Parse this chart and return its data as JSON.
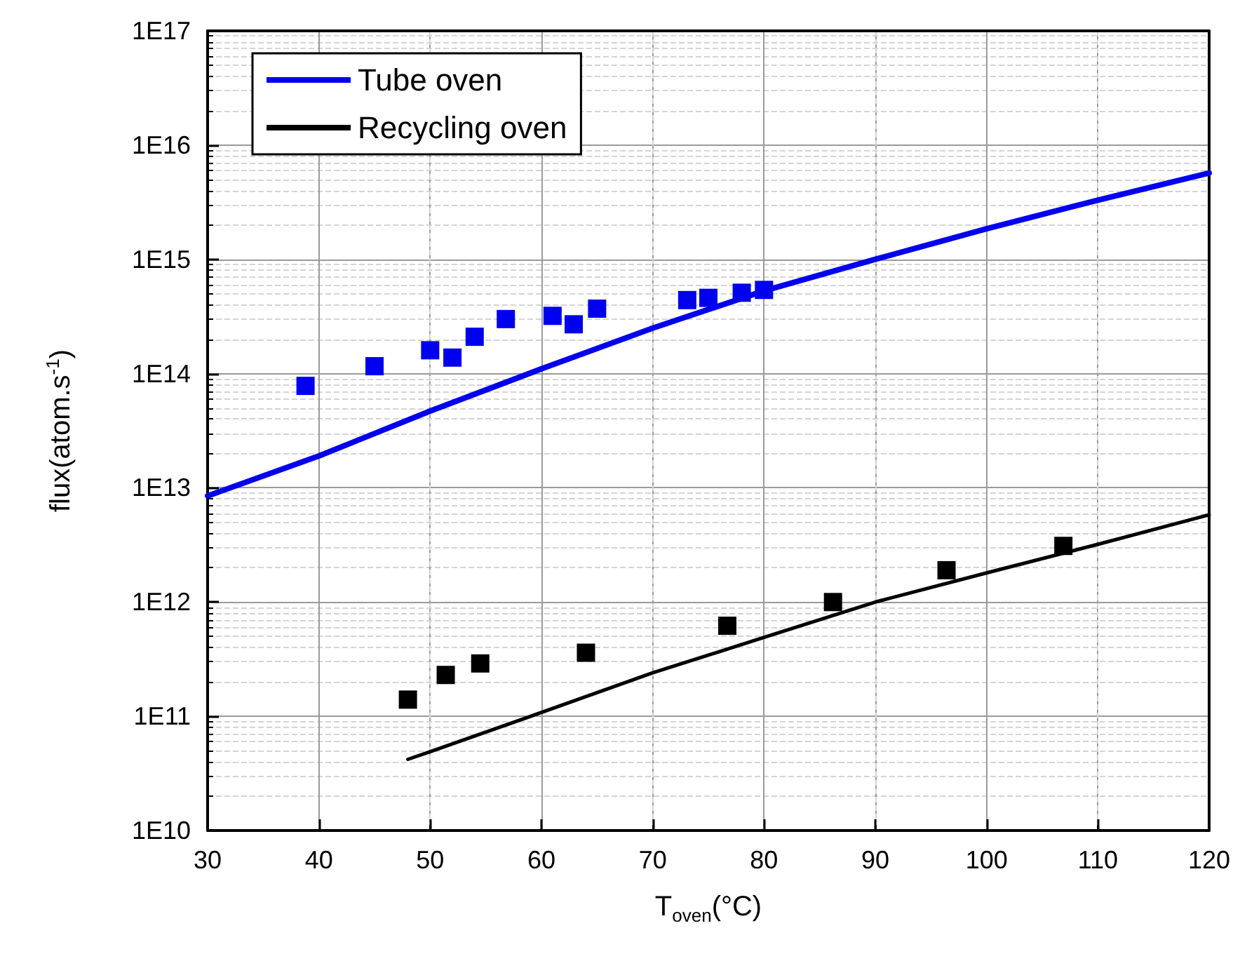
{
  "chart_data": {
    "type": "line",
    "xlabel": "T$_{oven}$(°C)",
    "ylabel": "flux(atom.s$^{-1}$)",
    "log": "y",
    "grid": true,
    "legend": "top left",
    "xlim": [
      30,
      120
    ],
    "xticks": [
      30,
      40,
      50,
      60,
      70,
      80,
      90,
      100,
      110,
      120
    ],
    "ylim": [
      10000000000.0,
      1e+17
    ],
    "yticks": [
      {
        "value": 10000000000.0,
        "label": "1E10"
      },
      {
        "value": 100000000000.0,
        "label": "1E11"
      },
      {
        "value": 1000000000000.0,
        "label": "1E12"
      },
      {
        "value": 10000000000000.0,
        "label": "1E13"
      },
      {
        "value": 100000000000000.0,
        "label": "1E14"
      },
      {
        "value": 1000000000000000.0,
        "label": "1E15"
      },
      {
        "value": 1e+16,
        "label": "1E16"
      },
      {
        "value": 1e+17,
        "label": "1E17"
      }
    ],
    "series": [
      {
        "name": "Tube oven",
        "color": "#0000ee",
        "marker": "none",
        "line_style": "solid",
        "x": [
          30,
          40,
          50,
          60,
          70,
          80,
          90,
          100,
          110,
          120
        ],
        "values": [
          8500000000000.0,
          19000000000000.0,
          47000000000000.0,
          110000000000000.0,
          250000000000000.0,
          530000000000000.0,
          1000000000000000.0,
          1850000000000000.0,
          3300000000000000.0,
          5700000000000000.0
        ]
      },
      {
        "name": "Recycling oven",
        "color": "#000000",
        "marker": "none",
        "line_style": "solid",
        "x": [
          48,
          50,
          60,
          70,
          80,
          90,
          100,
          110,
          120
        ],
        "values": [
          42000000000.0,
          49000000000.0,
          108000000000.0,
          240000000000.0,
          490000000000.0,
          1000000000000.0,
          1800000000000.0,
          3200000000000.0,
          5800000000000.0
        ]
      },
      {
        "type": "scatter",
        "color": "#0000ee",
        "marker": "square",
        "x": [
          38.8,
          45,
          50,
          52,
          54,
          56.8,
          61,
          62.9,
          65,
          73.1,
          75,
          78,
          80
        ],
        "values": [
          78000000000000.0,
          116000000000000.0,
          160000000000000.0,
          138000000000000.0,
          210000000000000.0,
          300000000000000.0,
          320000000000000.0,
          270000000000000.0,
          370000000000000.0,
          440000000000000.0,
          460000000000000.0,
          510000000000000.0,
          540000000000000.0
        ]
      },
      {
        "type": "scatter",
        "color": "#000000",
        "marker": "square",
        "x": [
          48,
          51.4,
          54.5,
          64,
          76.7,
          86.2,
          96.4,
          106.9
        ],
        "values": [
          140000000000.0,
          230000000000.0,
          290000000000.0,
          360000000000.0,
          620000000000.0,
          1000000000000.0,
          1900000000000.0,
          3100000000000.0
        ]
      }
    ]
  }
}
